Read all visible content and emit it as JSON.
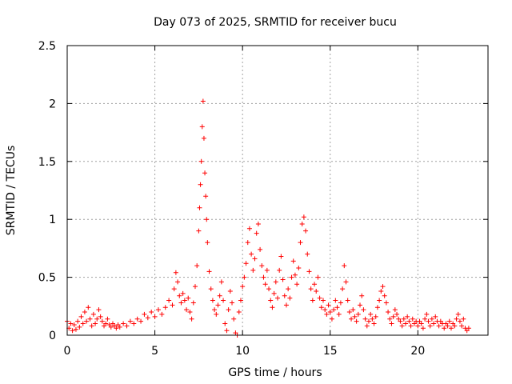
{
  "chart_data": {
    "type": "scatter",
    "title": "Day 073 of 2025, SRMTID for receiver bucu",
    "xlabel": "GPS time / hours",
    "ylabel": "SRMTID / TECUs",
    "xlim": [
      0,
      24
    ],
    "ylim": [
      0,
      2.5
    ],
    "x_ticks": [
      0,
      5,
      10,
      15,
      20
    ],
    "x_tick_labels": [
      "0",
      "5",
      "10",
      "15",
      "20"
    ],
    "y_ticks": [
      0,
      0.5,
      1,
      1.5,
      2,
      2.5
    ],
    "y_tick_labels": [
      "0",
      "0.5",
      "1",
      "1.5",
      "2",
      "2.5"
    ],
    "grid": true,
    "marker": "plus",
    "color": "#ff0000",
    "series": [
      {
        "name": "SRMTID",
        "points": [
          [
            0.0,
            0.12
          ],
          [
            0.1,
            0.06
          ],
          [
            0.2,
            0.1
          ],
          [
            0.3,
            0.04
          ],
          [
            0.4,
            0.09
          ],
          [
            0.5,
            0.05
          ],
          [
            0.6,
            0.12
          ],
          [
            0.7,
            0.07
          ],
          [
            0.8,
            0.16
          ],
          [
            0.9,
            0.1
          ],
          [
            1.0,
            0.2
          ],
          [
            1.1,
            0.12
          ],
          [
            1.2,
            0.24
          ],
          [
            1.3,
            0.14
          ],
          [
            1.4,
            0.08
          ],
          [
            1.5,
            0.18
          ],
          [
            1.6,
            0.1
          ],
          [
            1.7,
            0.14
          ],
          [
            1.8,
            0.22
          ],
          [
            1.9,
            0.16
          ],
          [
            2.0,
            0.12
          ],
          [
            2.1,
            0.08
          ],
          [
            2.2,
            0.1
          ],
          [
            2.3,
            0.14
          ],
          [
            2.4,
            0.09
          ],
          [
            2.5,
            0.07
          ],
          [
            2.6,
            0.1
          ],
          [
            2.7,
            0.08
          ],
          [
            2.8,
            0.06
          ],
          [
            2.9,
            0.09
          ],
          [
            3.0,
            0.07
          ],
          [
            3.2,
            0.1
          ],
          [
            3.4,
            0.08
          ],
          [
            3.6,
            0.12
          ],
          [
            3.8,
            0.1
          ],
          [
            4.0,
            0.14
          ],
          [
            4.2,
            0.12
          ],
          [
            4.4,
            0.18
          ],
          [
            4.6,
            0.15
          ],
          [
            4.8,
            0.2
          ],
          [
            5.0,
            0.16
          ],
          [
            5.2,
            0.22
          ],
          [
            5.4,
            0.18
          ],
          [
            5.6,
            0.24
          ],
          [
            5.8,
            0.3
          ],
          [
            6.0,
            0.26
          ],
          [
            6.1,
            0.4
          ],
          [
            6.2,
            0.54
          ],
          [
            6.3,
            0.46
          ],
          [
            6.4,
            0.34
          ],
          [
            6.5,
            0.28
          ],
          [
            6.6,
            0.36
          ],
          [
            6.7,
            0.3
          ],
          [
            6.8,
            0.22
          ],
          [
            6.9,
            0.32
          ],
          [
            7.0,
            0.2
          ],
          [
            7.1,
            0.14
          ],
          [
            7.2,
            0.28
          ],
          [
            7.3,
            0.42
          ],
          [
            7.4,
            0.6
          ],
          [
            7.5,
            0.9
          ],
          [
            7.55,
            1.1
          ],
          [
            7.6,
            1.3
          ],
          [
            7.65,
            1.5
          ],
          [
            7.7,
            1.8
          ],
          [
            7.75,
            2.02
          ],
          [
            7.8,
            1.7
          ],
          [
            7.85,
            1.4
          ],
          [
            7.9,
            1.2
          ],
          [
            7.95,
            1.0
          ],
          [
            8.0,
            0.8
          ],
          [
            8.1,
            0.55
          ],
          [
            8.2,
            0.4
          ],
          [
            8.3,
            0.3
          ],
          [
            8.4,
            0.22
          ],
          [
            8.5,
            0.18
          ],
          [
            8.6,
            0.26
          ],
          [
            8.7,
            0.34
          ],
          [
            8.8,
            0.46
          ],
          [
            8.9,
            0.3
          ],
          [
            9.0,
            0.1
          ],
          [
            9.1,
            0.04
          ],
          [
            9.2,
            0.22
          ],
          [
            9.3,
            0.38
          ],
          [
            9.4,
            0.28
          ],
          [
            9.5,
            0.14
          ],
          [
            9.6,
            0.02
          ],
          [
            9.7,
            0.0
          ],
          [
            9.8,
            0.2
          ],
          [
            9.9,
            0.3
          ],
          [
            10.0,
            0.42
          ],
          [
            10.1,
            0.5
          ],
          [
            10.2,
            0.62
          ],
          [
            10.3,
            0.8
          ],
          [
            10.4,
            0.92
          ],
          [
            10.5,
            0.7
          ],
          [
            10.6,
            0.56
          ],
          [
            10.7,
            0.66
          ],
          [
            10.8,
            0.88
          ],
          [
            10.9,
            0.96
          ],
          [
            11.0,
            0.74
          ],
          [
            11.1,
            0.6
          ],
          [
            11.2,
            0.5
          ],
          [
            11.3,
            0.44
          ],
          [
            11.4,
            0.56
          ],
          [
            11.5,
            0.4
          ],
          [
            11.6,
            0.3
          ],
          [
            11.7,
            0.24
          ],
          [
            11.8,
            0.36
          ],
          [
            11.9,
            0.46
          ],
          [
            12.0,
            0.32
          ],
          [
            12.1,
            0.56
          ],
          [
            12.2,
            0.68
          ],
          [
            12.3,
            0.48
          ],
          [
            12.4,
            0.34
          ],
          [
            12.5,
            0.26
          ],
          [
            12.6,
            0.4
          ],
          [
            12.7,
            0.32
          ],
          [
            12.8,
            0.5
          ],
          [
            12.9,
            0.64
          ],
          [
            13.0,
            0.52
          ],
          [
            13.1,
            0.44
          ],
          [
            13.2,
            0.58
          ],
          [
            13.3,
            0.8
          ],
          [
            13.4,
            0.96
          ],
          [
            13.5,
            1.02
          ],
          [
            13.6,
            0.9
          ],
          [
            13.7,
            0.7
          ],
          [
            13.8,
            0.55
          ],
          [
            13.9,
            0.4
          ],
          [
            14.0,
            0.3
          ],
          [
            14.1,
            0.44
          ],
          [
            14.2,
            0.38
          ],
          [
            14.3,
            0.5
          ],
          [
            14.4,
            0.32
          ],
          [
            14.5,
            0.24
          ],
          [
            14.6,
            0.3
          ],
          [
            14.7,
            0.22
          ],
          [
            14.8,
            0.18
          ],
          [
            14.9,
            0.26
          ],
          [
            15.0,
            0.2
          ],
          [
            15.1,
            0.14
          ],
          [
            15.2,
            0.22
          ],
          [
            15.3,
            0.3
          ],
          [
            15.4,
            0.24
          ],
          [
            15.5,
            0.18
          ],
          [
            15.6,
            0.28
          ],
          [
            15.7,
            0.4
          ],
          [
            15.8,
            0.6
          ],
          [
            15.9,
            0.46
          ],
          [
            16.0,
            0.3
          ],
          [
            16.1,
            0.2
          ],
          [
            16.2,
            0.14
          ],
          [
            16.3,
            0.22
          ],
          [
            16.4,
            0.16
          ],
          [
            16.5,
            0.12
          ],
          [
            16.6,
            0.18
          ],
          [
            16.7,
            0.26
          ],
          [
            16.8,
            0.34
          ],
          [
            16.9,
            0.22
          ],
          [
            17.0,
            0.14
          ],
          [
            17.1,
            0.08
          ],
          [
            17.2,
            0.12
          ],
          [
            17.3,
            0.18
          ],
          [
            17.4,
            0.14
          ],
          [
            17.5,
            0.1
          ],
          [
            17.6,
            0.16
          ],
          [
            17.7,
            0.24
          ],
          [
            17.8,
            0.3
          ],
          [
            17.9,
            0.38
          ],
          [
            18.0,
            0.42
          ],
          [
            18.1,
            0.34
          ],
          [
            18.2,
            0.28
          ],
          [
            18.3,
            0.2
          ],
          [
            18.4,
            0.14
          ],
          [
            18.5,
            0.1
          ],
          [
            18.6,
            0.16
          ],
          [
            18.7,
            0.22
          ],
          [
            18.8,
            0.18
          ],
          [
            18.9,
            0.14
          ],
          [
            19.0,
            0.12
          ],
          [
            19.1,
            0.08
          ],
          [
            19.2,
            0.14
          ],
          [
            19.3,
            0.1
          ],
          [
            19.4,
            0.16
          ],
          [
            19.5,
            0.12
          ],
          [
            19.6,
            0.08
          ],
          [
            19.7,
            0.14
          ],
          [
            19.8,
            0.1
          ],
          [
            19.9,
            0.12
          ],
          [
            20.0,
            0.08
          ],
          [
            20.1,
            0.12
          ],
          [
            20.2,
            0.1
          ],
          [
            20.3,
            0.06
          ],
          [
            20.4,
            0.14
          ],
          [
            20.5,
            0.18
          ],
          [
            20.6,
            0.12
          ],
          [
            20.7,
            0.08
          ],
          [
            20.8,
            0.14
          ],
          [
            20.9,
            0.1
          ],
          [
            21.0,
            0.16
          ],
          [
            21.1,
            0.12
          ],
          [
            21.2,
            0.08
          ],
          [
            21.3,
            0.12
          ],
          [
            21.4,
            0.1
          ],
          [
            21.5,
            0.06
          ],
          [
            21.6,
            0.1
          ],
          [
            21.7,
            0.08
          ],
          [
            21.8,
            0.12
          ],
          [
            21.9,
            0.06
          ],
          [
            22.0,
            0.1
          ],
          [
            22.1,
            0.08
          ],
          [
            22.2,
            0.14
          ],
          [
            22.3,
            0.18
          ],
          [
            22.4,
            0.12
          ],
          [
            22.5,
            0.08
          ],
          [
            22.6,
            0.14
          ],
          [
            22.7,
            0.06
          ],
          [
            22.8,
            0.04
          ],
          [
            22.9,
            0.06
          ]
        ]
      }
    ]
  }
}
